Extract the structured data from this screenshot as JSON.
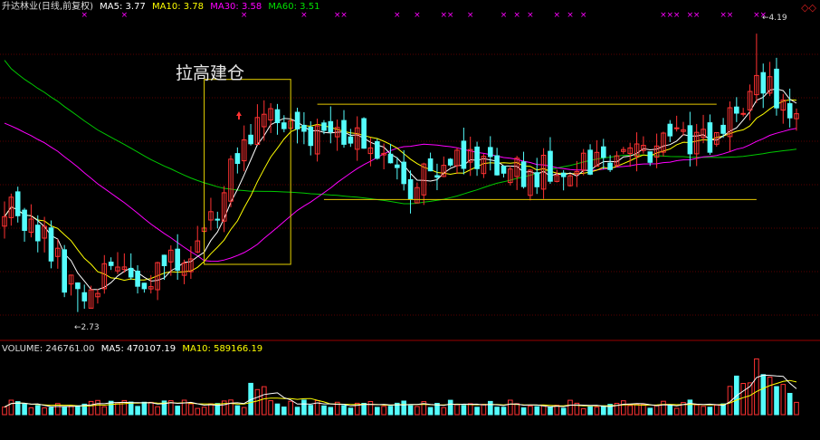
{
  "colors": {
    "bg": "#000000",
    "up": "#ff3232",
    "down": "#54fcfc",
    "ma5": "#ffffff",
    "ma10": "#ffff00",
    "ma30": "#ff00ff",
    "ma60": "#00c800",
    "grid": "#5a0000",
    "box": "#e6d200",
    "guide": "#e6c800",
    "marker": "#ff00ff"
  },
  "header": {
    "title": "升达林业(日线,前复权)",
    "ma5": "MA5: 3.77",
    "ma10": "MA10: 3.78",
    "ma30": "MA30: 3.58",
    "ma60": "MA60: 3.51"
  },
  "volume_header": {
    "volume": "VOLUME: 246761.00",
    "ma5": "MA5: 470107.19",
    "ma10": "MA10: 589166.19"
  },
  "annotation": "拉高建仓",
  "low_label": "2.73",
  "high_label": "4.19",
  "chart_data": {
    "type": "candlestick",
    "title": "升达林业(日线,前复权)",
    "price_ylim": [
      2.6,
      4.3
    ],
    "volume_ylim": [
      0,
      1200000
    ],
    "n_days": 120,
    "low_point": {
      "index": 11,
      "value": 2.73
    },
    "high_point": {
      "index": 113,
      "value": 4.19
    },
    "ma_last": {
      "ma5": 3.77,
      "ma10": 3.78,
      "ma30": 3.58,
      "ma60": 3.51
    },
    "ma60_start": 4.05,
    "ma30_start": 3.72,
    "consolidation": {
      "start": 47,
      "end": 113,
      "upper": 3.82,
      "lower": 3.32
    },
    "box": {
      "start": 30,
      "end": 43,
      "top": 3.95,
      "bottom": 2.98
    },
    "volume_last": 246761.0,
    "volume_ma5": 470107.19,
    "volume_ma10": 589166.19,
    "markers": [
      12,
      18,
      36,
      45,
      50,
      51,
      59,
      62,
      66,
      67,
      70,
      75,
      77,
      79,
      83,
      85,
      87,
      99,
      100,
      101,
      103,
      104,
      108,
      109,
      113,
      114
    ]
  }
}
